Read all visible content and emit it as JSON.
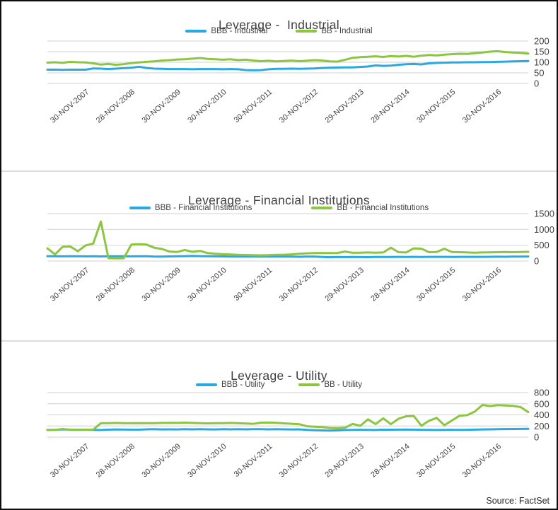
{
  "source_note": "Source: FactSet",
  "colors": {
    "bbb_blue": "#29a9e1",
    "bb_green": "#8cc63f",
    "gridline": "#d9d9d9",
    "text": "#404040"
  },
  "x_axis": {
    "tick_labels": [
      "30-NOV-2007",
      "28-NOV-2008",
      "30-NOV-2009",
      "30-NOV-2010",
      "30-NOV-2011",
      "30-NOV-2012",
      "29-NOV-2013",
      "28-NOV-2014",
      "30-NOV-2015",
      "30-NOV-2016"
    ],
    "tick_months": [
      11,
      23,
      35,
      47,
      59,
      71,
      83,
      95,
      107,
      119
    ],
    "months_total": 126
  },
  "chart_data": [
    {
      "type": "line",
      "title": "Leverage -  Industrial",
      "legend_position": "top",
      "grid": "horizontal",
      "ylim": [
        0,
        200
      ],
      "y_ticks": [
        200,
        150,
        100,
        50,
        0
      ],
      "point_step_months": 2,
      "series": [
        {
          "name": "BBB - Industrial",
          "color": "#29a9e1",
          "values": [
            65,
            65,
            64,
            65,
            65,
            65,
            71,
            70,
            68,
            70,
            72,
            74,
            79,
            73,
            70,
            69,
            68,
            68,
            68,
            67,
            68,
            68,
            68,
            67,
            68,
            67,
            63,
            62,
            63,
            67,
            69,
            69,
            70,
            69,
            70,
            71,
            73,
            74,
            75,
            76,
            76,
            78,
            80,
            85,
            83,
            84,
            88,
            91,
            92,
            90,
            95,
            97,
            98,
            99,
            99,
            100,
            100,
            101,
            101,
            102,
            103,
            104,
            105,
            106
          ]
        },
        {
          "name": "BB - Industrial",
          "color": "#8cc63f",
          "values": [
            98,
            100,
            97,
            102,
            100,
            99,
            95,
            89,
            92,
            88,
            91,
            96,
            99,
            102,
            104,
            108,
            110,
            113,
            114,
            117,
            120,
            116,
            114,
            112,
            114,
            110,
            112,
            108,
            105,
            107,
            104,
            106,
            108,
            105,
            107,
            110,
            108,
            104,
            103,
            112,
            121,
            124,
            126,
            128,
            125,
            129,
            127,
            130,
            126,
            131,
            134,
            132,
            136,
            138,
            140,
            139,
            143,
            146,
            150,
            152,
            148,
            146,
            144,
            141
          ]
        }
      ]
    },
    {
      "type": "line",
      "title": "Leverage - Financial Institutions",
      "legend_position": "top",
      "grid": "horizontal",
      "ylim": [
        0,
        1500
      ],
      "y_ticks": [
        1500,
        1000,
        500,
        0
      ],
      "point_step_months": 2,
      "series": [
        {
          "name": "BBB - Financial Institutions",
          "color": "#29a9e1",
          "values": [
            155,
            150,
            148,
            152,
            150,
            148,
            150,
            145,
            152,
            150,
            150,
            148,
            150,
            152,
            140,
            142,
            145,
            150,
            155,
            158,
            155,
            150,
            148,
            145,
            142,
            140,
            138,
            140,
            142,
            140,
            138,
            140,
            138,
            135,
            138,
            140,
            130,
            122,
            128,
            126,
            130,
            126,
            124,
            128,
            127,
            129,
            131,
            129,
            131,
            129,
            131,
            133,
            131,
            129,
            131,
            133,
            131,
            133,
            135,
            137,
            135,
            139,
            141,
            144
          ]
        },
        {
          "name": "BB - Financial Institutions",
          "color": "#8cc63f",
          "values": [
            400,
            210,
            450,
            460,
            310,
            495,
            550,
            1250,
            90,
            85,
            88,
            520,
            530,
            520,
            420,
            380,
            300,
            285,
            350,
            290,
            320,
            250,
            230,
            215,
            205,
            195,
            190,
            185,
            180,
            185,
            195,
            200,
            210,
            230,
            245,
            250,
            255,
            250,
            255,
            300,
            260,
            265,
            270,
            265,
            270,
            420,
            280,
            270,
            400,
            390,
            280,
            285,
            390,
            285,
            280,
            270,
            265,
            270,
            275,
            280,
            285,
            280,
            285,
            290
          ]
        }
      ]
    },
    {
      "type": "line",
      "title": "Leverage - Utility",
      "legend_position": "top",
      "grid": "horizontal",
      "ylim": [
        0,
        800
      ],
      "y_ticks": [
        800,
        600,
        400,
        200,
        0
      ],
      "point_step_months": 2,
      "series": [
        {
          "name": "BBB - Utility",
          "color": "#29a9e1",
          "values": [
            130,
            132,
            138,
            135,
            133,
            135,
            130,
            128,
            135,
            138,
            136,
            134,
            135,
            140,
            142,
            138,
            140,
            138,
            142,
            140,
            143,
            140,
            138,
            142,
            140,
            142,
            140,
            143,
            142,
            140,
            142,
            140,
            138,
            140,
            130,
            125,
            120,
            118,
            122,
            128,
            130,
            132,
            130,
            128,
            135,
            133,
            135,
            137,
            134,
            132,
            130,
            128,
            130,
            132,
            130,
            132,
            135,
            138,
            140,
            142,
            145,
            146,
            147,
            148
          ]
        },
        {
          "name": "BB - Utility",
          "color": "#8cc63f",
          "values": [
            128,
            130,
            146,
            133,
            130,
            133,
            135,
            250,
            252,
            255,
            252,
            250,
            253,
            250,
            252,
            255,
            258,
            255,
            260,
            255,
            252,
            248,
            250,
            252,
            255,
            250,
            245,
            240,
            260,
            262,
            258,
            248,
            240,
            232,
            195,
            188,
            182,
            165,
            162,
            172,
            238,
            205,
            320,
            235,
            338,
            232,
            330,
            375,
            380,
            205,
            295,
            345,
            215,
            300,
            385,
            395,
            460,
            578,
            558,
            575,
            568,
            560,
            540,
            450
          ]
        }
      ]
    }
  ]
}
